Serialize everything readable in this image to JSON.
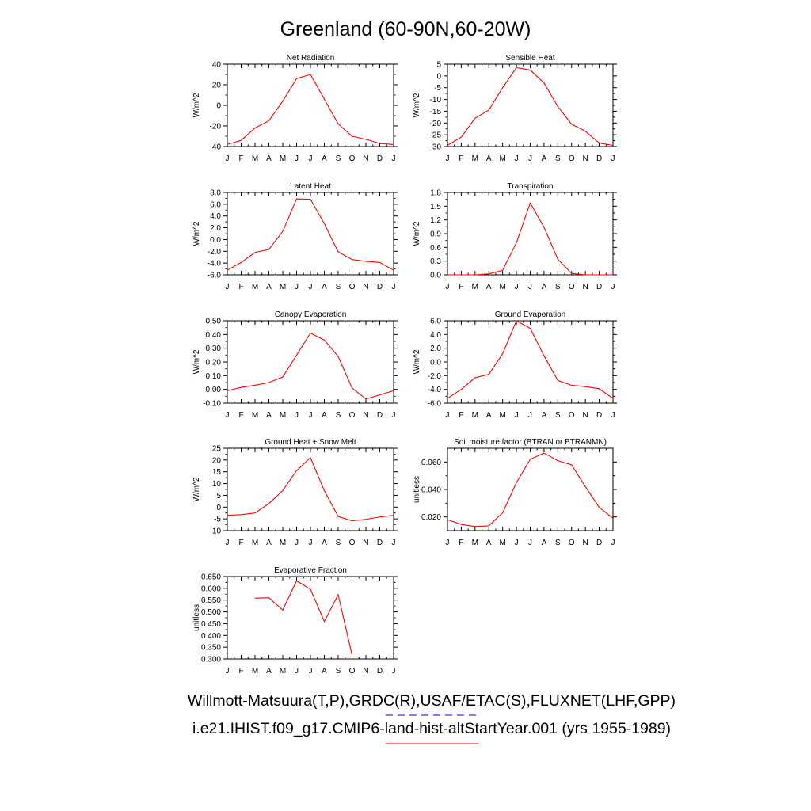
{
  "title": "Greenland (60-90N,60-20W)",
  "legend": [
    {
      "label": "Willmott-Matsuura(T,P),GRDC(R),USAF/ETAC(S),FLUXNET(LHF,GPP)",
      "color": "#0000ff",
      "dash": true
    },
    {
      "label": "i.e21.IHIST.f09_g17.CMIP6-land-hist-altStartYear.001 (yrs 1955-1989)",
      "color": "#ff0000",
      "dash": false
    }
  ],
  "chart_data": [
    {
      "type": "line",
      "title": "Net Radiation",
      "ylabel": "W/m^2",
      "categories": [
        "J",
        "F",
        "M",
        "A",
        "M",
        "J",
        "J",
        "A",
        "S",
        "O",
        "N",
        "D",
        "J"
      ],
      "ylim": [
        -40,
        40
      ],
      "yticks": [
        "40",
        "20",
        "0",
        "-20",
        "-40"
      ],
      "ytick_values": [
        40,
        20,
        0,
        -20,
        -40
      ],
      "series": [
        {
          "color": "#ff0000",
          "values": [
            -38,
            -34,
            -22,
            -15,
            4,
            26,
            30,
            6,
            -18,
            -30,
            -33,
            -37,
            -38
          ]
        }
      ]
    },
    {
      "type": "line",
      "title": "Sensible Heat",
      "ylabel": "W/m^2",
      "categories": [
        "J",
        "F",
        "M",
        "A",
        "M",
        "J",
        "J",
        "A",
        "S",
        "O",
        "N",
        "D",
        "J"
      ],
      "ylim": [
        -30,
        5
      ],
      "yticks": [
        "5",
        "0",
        "-5",
        "-10",
        "-15",
        "-20",
        "-25",
        "-30"
      ],
      "ytick_values": [
        5,
        0,
        -5,
        -10,
        -15,
        -20,
        -25,
        -30
      ],
      "series": [
        {
          "color": "#ff0000",
          "values": [
            -29.5,
            -26,
            -18,
            -14.5,
            -5,
            3.5,
            2.5,
            -3,
            -13,
            -20.5,
            -23.5,
            -28.5,
            -29.5
          ]
        }
      ]
    },
    {
      "type": "line",
      "title": "Latent Heat",
      "ylabel": "W/m^2",
      "categories": [
        "J",
        "F",
        "M",
        "A",
        "M",
        "J",
        "J",
        "A",
        "S",
        "O",
        "N",
        "D",
        "J"
      ],
      "ylim": [
        -6,
        8
      ],
      "yticks": [
        "8.0",
        "6.0",
        "4.0",
        "2.0",
        "0.0",
        "-2.0",
        "-4.0",
        "-6.0"
      ],
      "ytick_values": [
        8,
        6,
        4,
        2,
        0,
        -2,
        -4,
        -6
      ],
      "series": [
        {
          "color": "#ff0000",
          "values": [
            -5.2,
            -3.9,
            -2.2,
            -1.7,
            1.4,
            6.9,
            6.85,
            2.7,
            -2.1,
            -3.4,
            -3.7,
            -3.9,
            -5.2
          ]
        }
      ]
    },
    {
      "type": "line",
      "title": "Transpiration",
      "ylabel": "W/m^2",
      "categories": [
        "J",
        "F",
        "M",
        "A",
        "M",
        "J",
        "J",
        "A",
        "S",
        "O",
        "N",
        "D",
        "J"
      ],
      "ylim": [
        0,
        1.8
      ],
      "yticks": [
        "1.8",
        "1.5",
        "1.2",
        "0.9",
        "0.6",
        "0.3",
        "0.0"
      ],
      "ytick_values": [
        1.8,
        1.5,
        1.2,
        0.9,
        0.6,
        0.3,
        0.0
      ],
      "series": [
        {
          "color": "#ff0000",
          "values": [
            0,
            0,
            0,
            0.02,
            0.1,
            0.7,
            1.57,
            1.04,
            0.34,
            0.03,
            0,
            0,
            0
          ]
        }
      ]
    },
    {
      "type": "line",
      "title": "Canopy Evaporation",
      "ylabel": "W/m^2",
      "categories": [
        "J",
        "F",
        "M",
        "A",
        "M",
        "J",
        "J",
        "A",
        "S",
        "O",
        "N",
        "D",
        "J"
      ],
      "ylim": [
        -0.1,
        0.5
      ],
      "yticks": [
        "0.50",
        "0.40",
        "0.30",
        "0.20",
        "0.10",
        "0.00",
        "-0.10"
      ],
      "ytick_values": [
        0.5,
        0.4,
        0.3,
        0.2,
        0.1,
        0.0,
        -0.1
      ],
      "series": [
        {
          "color": "#ff0000",
          "values": [
            -0.01,
            0.015,
            0.03,
            0.05,
            0.09,
            0.25,
            0.41,
            0.36,
            0.24,
            0.01,
            -0.07,
            -0.04,
            -0.01
          ]
        }
      ]
    },
    {
      "type": "line",
      "title": "Ground Evaporation",
      "ylabel": "W/m^2",
      "categories": [
        "J",
        "F",
        "M",
        "A",
        "M",
        "J",
        "J",
        "A",
        "S",
        "O",
        "N",
        "D",
        "J"
      ],
      "ylim": [
        -6,
        6
      ],
      "yticks": [
        "6.0",
        "4.0",
        "2.0",
        "0.0",
        "-2.0",
        "-4.0",
        "-6.0"
      ],
      "ytick_values": [
        6,
        4,
        2,
        0,
        -2,
        -4,
        -6
      ],
      "series": [
        {
          "color": "#ff0000",
          "values": [
            -5.3,
            -4.0,
            -2.3,
            -1.8,
            1.2,
            6.0,
            4.9,
            0.9,
            -2.7,
            -3.4,
            -3.6,
            -3.9,
            -5.3
          ]
        }
      ]
    },
    {
      "type": "line",
      "title": "Ground Heat + Snow Melt",
      "ylabel": "W/m^2",
      "categories": [
        "J",
        "F",
        "M",
        "A",
        "M",
        "J",
        "J",
        "A",
        "S",
        "O",
        "N",
        "D",
        "J"
      ],
      "ylim": [
        -10,
        25
      ],
      "yticks": [
        "25",
        "20",
        "15",
        "10",
        "5",
        "0",
        "-5",
        "-10"
      ],
      "ytick_values": [
        25,
        20,
        15,
        10,
        5,
        0,
        -5,
        -10
      ],
      "series": [
        {
          "color": "#ff0000",
          "values": [
            -3.5,
            -3.2,
            -2.5,
            1.5,
            7,
            15.5,
            21,
            7,
            -4,
            -5.8,
            -5.2,
            -4.2,
            -3.5
          ]
        }
      ]
    },
    {
      "type": "line",
      "title": "Soil moisture factor (BTRAN or BTRANMN)",
      "ylabel": "unitless",
      "categories": [
        "J",
        "F",
        "M",
        "A",
        "M",
        "J",
        "J",
        "A",
        "S",
        "O",
        "N",
        "D",
        "J"
      ],
      "ylim": [
        0.01,
        0.07
      ],
      "yticks": [
        "0.060",
        "0.040",
        "0.020"
      ],
      "ytick_values": [
        0.06,
        0.04,
        0.02
      ],
      "series": [
        {
          "color": "#ff0000",
          "values": [
            0.018,
            0.0145,
            0.013,
            0.0135,
            0.023,
            0.045,
            0.062,
            0.0665,
            0.061,
            0.058,
            0.042,
            0.027,
            0.019
          ]
        }
      ]
    },
    {
      "type": "line",
      "title": "Evaporative Fraction",
      "ylabel": "unitless",
      "categories": [
        "J",
        "F",
        "M",
        "A",
        "M",
        "J",
        "J",
        "A",
        "S",
        "O",
        "N",
        "D",
        "J"
      ],
      "ylim": [
        0.3,
        0.65
      ],
      "yticks": [
        "0.650",
        "0.600",
        "0.550",
        "0.500",
        "0.450",
        "0.400",
        "0.350",
        "0.300"
      ],
      "ytick_values": [
        0.65,
        0.6,
        0.55,
        0.5,
        0.45,
        0.4,
        0.35,
        0.3
      ],
      "series": [
        {
          "color": "#ff0000",
          "values": [
            null,
            null,
            0.558,
            0.56,
            0.508,
            0.632,
            0.596,
            0.459,
            0.573,
            0.317,
            null,
            null,
            null
          ]
        }
      ]
    }
  ]
}
